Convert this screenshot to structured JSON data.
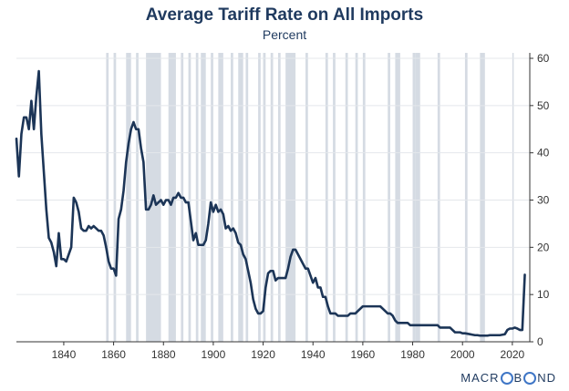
{
  "chart_data": {
    "type": "line",
    "title": "Average Tariff Rate on All Imports",
    "subtitle": "Percent",
    "xlim": [
      1821,
      2027
    ],
    "ylim": [
      0,
      60
    ],
    "x_ticks": [
      1840,
      1860,
      1880,
      1900,
      1920,
      1940,
      1960,
      1980,
      2000,
      2020
    ],
    "y_ticks": [
      0,
      10,
      20,
      30,
      40,
      50,
      60
    ],
    "y_axis_side": "right",
    "recession_shading_color": "#d5dbe3",
    "series": [
      {
        "color": "#1c3557",
        "points": [
          [
            1821,
            43
          ],
          [
            1822,
            35
          ],
          [
            1823,
            44
          ],
          [
            1824,
            47.5
          ],
          [
            1825,
            47.5
          ],
          [
            1826,
            45
          ],
          [
            1827,
            51
          ],
          [
            1828,
            45
          ],
          [
            1829,
            52
          ],
          [
            1830,
            57.3
          ],
          [
            1831,
            44
          ],
          [
            1832,
            36
          ],
          [
            1833,
            28
          ],
          [
            1834,
            22
          ],
          [
            1835,
            21
          ],
          [
            1836,
            19
          ],
          [
            1837,
            16
          ],
          [
            1838,
            23
          ],
          [
            1839,
            17.5
          ],
          [
            1840,
            17.5
          ],
          [
            1841,
            17
          ],
          [
            1842,
            18.5
          ],
          [
            1843,
            20
          ],
          [
            1844,
            30.5
          ],
          [
            1845,
            29.5
          ],
          [
            1846,
            27.5
          ],
          [
            1847,
            24
          ],
          [
            1848,
            23.5
          ],
          [
            1849,
            23.5
          ],
          [
            1850,
            24.5
          ],
          [
            1851,
            24
          ],
          [
            1852,
            24.5
          ],
          [
            1853,
            24
          ],
          [
            1854,
            23.5
          ],
          [
            1855,
            23.5
          ],
          [
            1856,
            22.5
          ],
          [
            1857,
            20
          ],
          [
            1858,
            17
          ],
          [
            1859,
            15.5
          ],
          [
            1860,
            15.5
          ],
          [
            1861,
            14
          ],
          [
            1862,
            26
          ],
          [
            1863,
            28
          ],
          [
            1864,
            32
          ],
          [
            1865,
            38
          ],
          [
            1866,
            42
          ],
          [
            1867,
            45
          ],
          [
            1868,
            46.5
          ],
          [
            1869,
            45
          ],
          [
            1870,
            45
          ],
          [
            1871,
            41
          ],
          [
            1872,
            38
          ],
          [
            1873,
            28
          ],
          [
            1874,
            28
          ],
          [
            1875,
            29
          ],
          [
            1876,
            31
          ],
          [
            1877,
            29
          ],
          [
            1878,
            29.5
          ],
          [
            1879,
            30
          ],
          [
            1880,
            29
          ],
          [
            1881,
            30
          ],
          [
            1882,
            30
          ],
          [
            1883,
            29
          ],
          [
            1884,
            30.5
          ],
          [
            1885,
            30.5
          ],
          [
            1886,
            31.5
          ],
          [
            1887,
            30.5
          ],
          [
            1888,
            30.5
          ],
          [
            1889,
            29.5
          ],
          [
            1890,
            29.5
          ],
          [
            1891,
            25.5
          ],
          [
            1892,
            21.5
          ],
          [
            1893,
            23
          ],
          [
            1894,
            20.5
          ],
          [
            1895,
            20.5
          ],
          [
            1896,
            20.5
          ],
          [
            1897,
            21.5
          ],
          [
            1898,
            25
          ],
          [
            1899,
            29.5
          ],
          [
            1900,
            27.5
          ],
          [
            1901,
            29
          ],
          [
            1902,
            27.5
          ],
          [
            1903,
            28
          ],
          [
            1904,
            27
          ],
          [
            1905,
            24
          ],
          [
            1906,
            24.5
          ],
          [
            1907,
            23.5
          ],
          [
            1908,
            24
          ],
          [
            1909,
            23
          ],
          [
            1910,
            21
          ],
          [
            1911,
            20.5
          ],
          [
            1912,
            18.5
          ],
          [
            1913,
            17.5
          ],
          [
            1914,
            15
          ],
          [
            1915,
            12.5
          ],
          [
            1916,
            9
          ],
          [
            1917,
            7
          ],
          [
            1918,
            6
          ],
          [
            1919,
            6
          ],
          [
            1920,
            6.5
          ],
          [
            1921,
            11.5
          ],
          [
            1922,
            14.5
          ],
          [
            1923,
            15
          ],
          [
            1924,
            15
          ],
          [
            1925,
            13
          ],
          [
            1926,
            13.5
          ],
          [
            1927,
            13.5
          ],
          [
            1928,
            13.5
          ],
          [
            1929,
            13.5
          ],
          [
            1930,
            15.5
          ],
          [
            1931,
            18
          ],
          [
            1932,
            19.5
          ],
          [
            1933,
            19.5
          ],
          [
            1934,
            18.5
          ],
          [
            1935,
            17.5
          ],
          [
            1936,
            16.5
          ],
          [
            1937,
            15.5
          ],
          [
            1938,
            15.5
          ],
          [
            1939,
            14
          ],
          [
            1940,
            12.5
          ],
          [
            1941,
            13.5
          ],
          [
            1942,
            11.5
          ],
          [
            1943,
            11.5
          ],
          [
            1944,
            9.5
          ],
          [
            1945,
            9.5
          ],
          [
            1946,
            7.5
          ],
          [
            1947,
            6
          ],
          [
            1948,
            6
          ],
          [
            1949,
            6
          ],
          [
            1950,
            5.5
          ],
          [
            1951,
            5.5
          ],
          [
            1952,
            5.5
          ],
          [
            1953,
            5.5
          ],
          [
            1954,
            5.5
          ],
          [
            1955,
            6
          ],
          [
            1956,
            6
          ],
          [
            1957,
            6
          ],
          [
            1958,
            6.5
          ],
          [
            1959,
            7
          ],
          [
            1960,
            7.5
          ],
          [
            1961,
            7.5
          ],
          [
            1962,
            7.5
          ],
          [
            1963,
            7.5
          ],
          [
            1964,
            7.5
          ],
          [
            1965,
            7.5
          ],
          [
            1966,
            7.5
          ],
          [
            1967,
            7.5
          ],
          [
            1968,
            7
          ],
          [
            1969,
            6.5
          ],
          [
            1970,
            6
          ],
          [
            1971,
            6
          ],
          [
            1972,
            5.5
          ],
          [
            1973,
            4.5
          ],
          [
            1974,
            4
          ],
          [
            1975,
            4
          ],
          [
            1976,
            4
          ],
          [
            1977,
            4
          ],
          [
            1978,
            4
          ],
          [
            1979,
            3.5
          ],
          [
            1980,
            3.5
          ],
          [
            1981,
            3.5
          ],
          [
            1982,
            3.5
          ],
          [
            1983,
            3.5
          ],
          [
            1984,
            3.5
          ],
          [
            1985,
            3.5
          ],
          [
            1986,
            3.5
          ],
          [
            1987,
            3.5
          ],
          [
            1988,
            3.5
          ],
          [
            1989,
            3.5
          ],
          [
            1990,
            3.5
          ],
          [
            1991,
            3
          ],
          [
            1992,
            3
          ],
          [
            1993,
            3
          ],
          [
            1994,
            3
          ],
          [
            1995,
            3
          ],
          [
            1996,
            2.5
          ],
          [
            1997,
            2
          ],
          [
            1998,
            2
          ],
          [
            1999,
            2
          ],
          [
            2000,
            1.8
          ],
          [
            2001,
            1.8
          ],
          [
            2002,
            1.7
          ],
          [
            2003,
            1.6
          ],
          [
            2004,
            1.5
          ],
          [
            2005,
            1.4
          ],
          [
            2006,
            1.4
          ],
          [
            2007,
            1.3
          ],
          [
            2008,
            1.3
          ],
          [
            2009,
            1.3
          ],
          [
            2010,
            1.3
          ],
          [
            2011,
            1.4
          ],
          [
            2012,
            1.4
          ],
          [
            2013,
            1.4
          ],
          [
            2014,
            1.4
          ],
          [
            2015,
            1.4
          ],
          [
            2016,
            1.5
          ],
          [
            2017,
            1.6
          ],
          [
            2018,
            2.5
          ],
          [
            2019,
            2.8
          ],
          [
            2020,
            2.8
          ],
          [
            2021,
            3
          ],
          [
            2022,
            2.8
          ],
          [
            2023,
            2.5
          ],
          [
            2024,
            2.5
          ],
          [
            2025,
            14.2
          ]
        ]
      }
    ],
    "recessions": [
      [
        1857,
        1858
      ],
      [
        1860,
        1861
      ],
      [
        1865,
        1867
      ],
      [
        1869,
        1870
      ],
      [
        1873,
        1879
      ],
      [
        1882,
        1885
      ],
      [
        1887,
        1888
      ],
      [
        1890,
        1891
      ],
      [
        1893,
        1894
      ],
      [
        1895,
        1897
      ],
      [
        1899,
        1900
      ],
      [
        1902,
        1904
      ],
      [
        1907,
        1908
      ],
      [
        1910,
        1912
      ],
      [
        1913,
        1914
      ],
      [
        1918,
        1919
      ],
      [
        1920,
        1921
      ],
      [
        1923,
        1924
      ],
      [
        1926,
        1927
      ],
      [
        1929,
        1933
      ],
      [
        1937,
        1938
      ],
      [
        1945,
        1946
      ],
      [
        1948,
        1949
      ],
      [
        1953,
        1954
      ],
      [
        1957,
        1958
      ],
      [
        1960,
        1961
      ],
      [
        1970,
        1971
      ],
      [
        1973,
        1975
      ],
      [
        1980,
        1981
      ],
      [
        1981,
        1983
      ],
      [
        1990,
        1991
      ],
      [
        2001,
        2002
      ],
      [
        2007,
        2009
      ],
      [
        2020,
        2020.5
      ]
    ]
  },
  "branding": {
    "before": "MACR",
    "after": "B",
    "end": "ND"
  }
}
